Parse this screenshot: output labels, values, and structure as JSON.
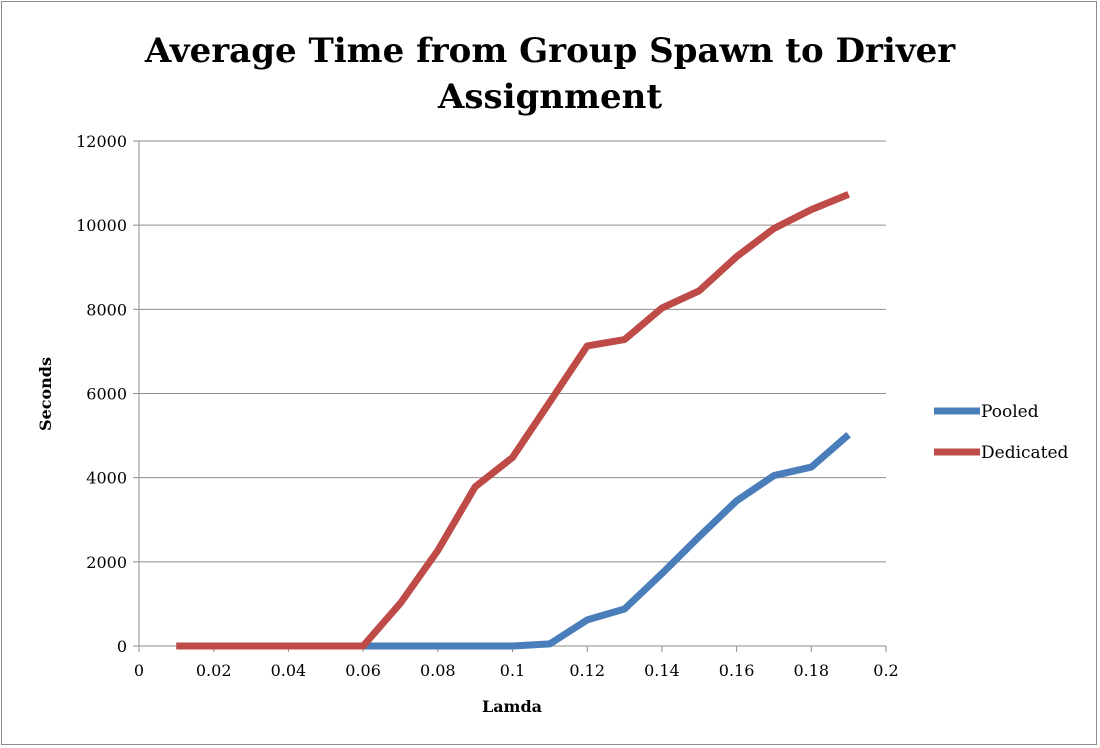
{
  "chart_data": {
    "type": "line",
    "title_line1": "Average Time from Group Spawn to Driver",
    "title_line2": "Assignment",
    "xlabel": "Lamda",
    "ylabel": "Seconds",
    "xlim": [
      0,
      0.2
    ],
    "ylim": [
      0,
      12000
    ],
    "x_ticks": [
      0,
      0.02,
      0.04,
      0.06,
      0.08,
      0.1,
      0.12,
      0.14,
      0.16,
      0.18,
      0.2
    ],
    "x_tick_labels": [
      "0",
      "0.02",
      "0.04",
      "0.06",
      "0.08",
      "0.1",
      "0.12",
      "0.14",
      "0.16",
      "0.18",
      "0.2"
    ],
    "y_ticks": [
      0,
      2000,
      4000,
      6000,
      8000,
      10000,
      12000
    ],
    "y_tick_labels": [
      "0",
      "2000",
      "4000",
      "6000",
      "8000",
      "10000",
      "12000"
    ],
    "grid": "horizontal",
    "legend_position": "right",
    "x": [
      0.01,
      0.02,
      0.03,
      0.04,
      0.05,
      0.06,
      0.07,
      0.08,
      0.09,
      0.1,
      0.11,
      0.12,
      0.13,
      0.14,
      0.15,
      0.16,
      0.17,
      0.18,
      0.19
    ],
    "series": [
      {
        "name": "Pooled",
        "color": "#4a7ebb",
        "values": [
          0,
          0,
          0,
          0,
          0,
          0,
          0,
          0,
          0,
          0,
          50,
          620,
          880,
          1720,
          2600,
          3450,
          4050,
          4250,
          5020
        ]
      },
      {
        "name": "Dedicated",
        "color": "#be4b48",
        "values": [
          0,
          0,
          0,
          0,
          0,
          0,
          1020,
          2270,
          3780,
          4480,
          5800,
          7130,
          7280,
          8030,
          8440,
          9250,
          9920,
          10370,
          10730
        ]
      }
    ]
  }
}
